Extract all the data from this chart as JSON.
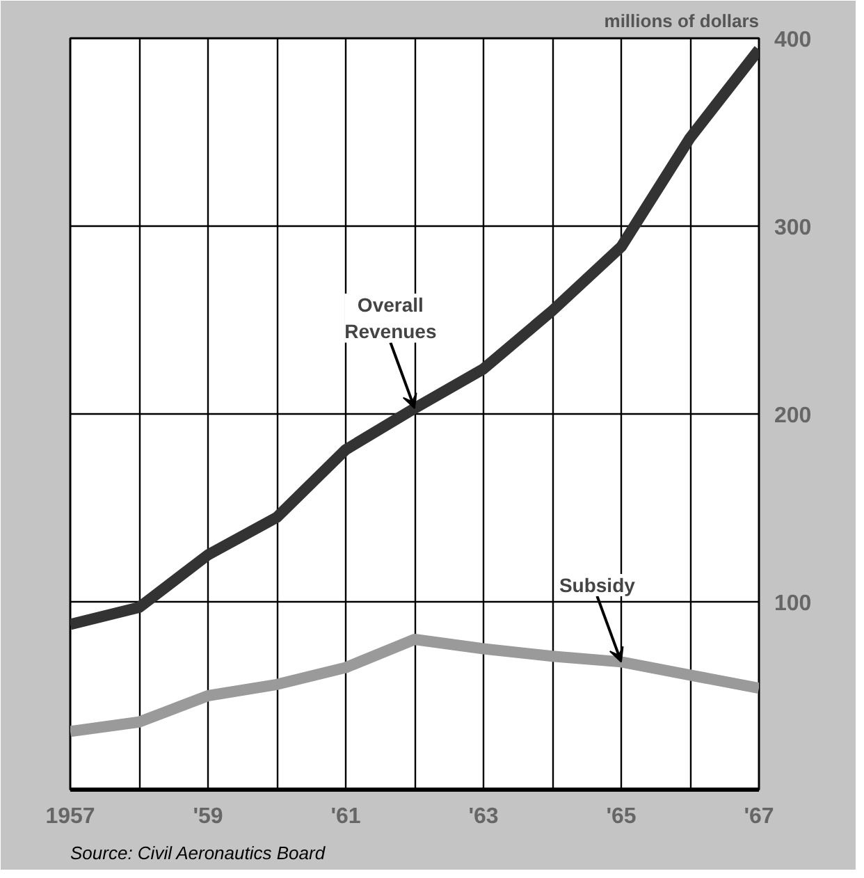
{
  "chart_data": {
    "type": "line",
    "ylabel": "millions of dollars",
    "x": [
      1957,
      1958,
      1959,
      1960,
      1961,
      1962,
      1963,
      1964,
      1965,
      1966,
      1967
    ],
    "series": [
      {
        "color": "#333333",
        "values": [
          88,
          97,
          125,
          145,
          181,
          203,
          224,
          255,
          289,
          347,
          394
        ]
      },
      {
        "color": "#9a9a9a",
        "values": [
          31,
          36,
          50,
          56,
          65,
          80,
          75,
          71,
          68,
          61,
          54
        ]
      }
    ],
    "xlim": [
      1957,
      1967
    ],
    "ylim": [
      0,
      400
    ],
    "xticks": [
      {
        "value": 1957,
        "label": "1957"
      },
      {
        "value": 1958,
        "label": null
      },
      {
        "value": 1959,
        "label": "'59"
      },
      {
        "value": 1960,
        "label": null
      },
      {
        "value": 1961,
        "label": "'61"
      },
      {
        "value": 1962,
        "label": null
      },
      {
        "value": 1963,
        "label": "'63"
      },
      {
        "value": 1964,
        "label": null
      },
      {
        "value": 1965,
        "label": "'65"
      },
      {
        "value": 1966,
        "label": null
      },
      {
        "value": 1967,
        "label": "'67"
      }
    ],
    "yticks": [
      100,
      200,
      300,
      400
    ],
    "grid": true,
    "marker": "none",
    "line_style": "solid",
    "annotations": [
      {
        "text": "Overall\nRevenues",
        "x": 1962,
        "y": 203
      },
      {
        "text": "Subsidy",
        "x": 1965,
        "y": 68
      },
      "Source: Civil Aeronautics Board"
    ]
  }
}
